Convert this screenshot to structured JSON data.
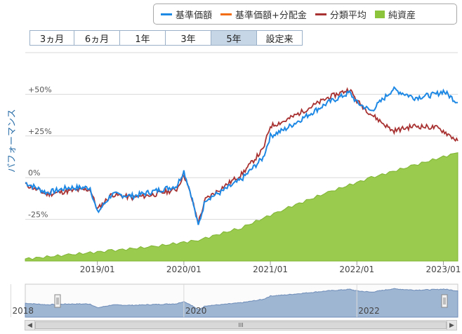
{
  "legend": {
    "items": [
      {
        "label": "基準価額",
        "color": "#1e88e5",
        "kind": "line"
      },
      {
        "label": "基準価額+分配金",
        "color": "#f26c10",
        "kind": "line"
      },
      {
        "label": "分類平均",
        "color": "#a83232",
        "kind": "line"
      },
      {
        "label": "純資産",
        "color": "#8cc43c",
        "kind": "box"
      }
    ]
  },
  "ranges": {
    "buttons": [
      "3ヵ月",
      "6ヵ月",
      "1年",
      "3年",
      "5年",
      "設定来"
    ],
    "selected": "5年"
  },
  "scrollbar": {
    "thumb_label": "III"
  },
  "chart_data": {
    "type": "line",
    "ylabel": "パフォーマンス",
    "y_ticks": [
      "+50%",
      "+25%",
      "0%",
      "-25%"
    ],
    "ylim": [
      -50,
      75
    ],
    "x_ticks": [
      "2019/01",
      "2020/01",
      "2021/01",
      "2022/01",
      "2023/01"
    ],
    "x_range": [
      "2018/03",
      "2023/03"
    ],
    "navigator_ticks": [
      "2018",
      "2020",
      "2022"
    ],
    "series": [
      {
        "name": "基準価額",
        "color": "#1e88e5",
        "x": [
          "2018/03",
          "2018/06",
          "2018/09",
          "2018/12",
          "2019/01",
          "2019/03",
          "2019/06",
          "2019/09",
          "2019/12",
          "2020/01",
          "2020/02",
          "2020/03",
          "2020/04",
          "2020/06",
          "2020/09",
          "2020/12",
          "2021/01",
          "2021/03",
          "2021/06",
          "2021/09",
          "2021/12",
          "2022/01",
          "2022/03",
          "2022/06",
          "2022/09",
          "2022/12",
          "2023/01",
          "2023/03"
        ],
        "values": [
          -3,
          -9,
          -6,
          -6,
          -21,
          -10,
          -11,
          -8,
          -5,
          4,
          -10,
          -29,
          -13,
          -9,
          -1,
          12,
          25,
          29,
          37,
          45,
          51,
          45,
          40,
          53,
          48,
          50,
          52,
          45
        ]
      },
      {
        "name": "分類平均",
        "color": "#a83232",
        "x": [
          "2018/03",
          "2018/06",
          "2018/09",
          "2018/12",
          "2019/01",
          "2019/03",
          "2019/06",
          "2019/09",
          "2019/12",
          "2020/01",
          "2020/02",
          "2020/03",
          "2020/04",
          "2020/06",
          "2020/09",
          "2020/12",
          "2021/01",
          "2021/03",
          "2021/06",
          "2021/09",
          "2021/12",
          "2022/01",
          "2022/03",
          "2022/06",
          "2022/09",
          "2022/12",
          "2023/01",
          "2023/03"
        ],
        "values": [
          -4,
          -10,
          -8,
          -7,
          -19,
          -10,
          -12,
          -10,
          -7,
          2,
          -11,
          -27,
          -13,
          -7,
          2,
          17,
          31,
          34,
          41,
          48,
          53,
          46,
          38,
          28,
          31,
          30,
          28,
          22
        ]
      },
      {
        "name": "純資産",
        "color": "#8cc43c",
        "x": [
          "2018/03",
          "2018/09",
          "2019/03",
          "2019/09",
          "2020/03",
          "2020/09",
          "2021/03",
          "2021/09",
          "2022/03",
          "2022/09",
          "2023/03"
        ],
        "values": [
          1,
          3,
          5,
          7,
          10,
          16,
          25,
          33,
          40,
          46,
          52
        ]
      }
    ]
  }
}
